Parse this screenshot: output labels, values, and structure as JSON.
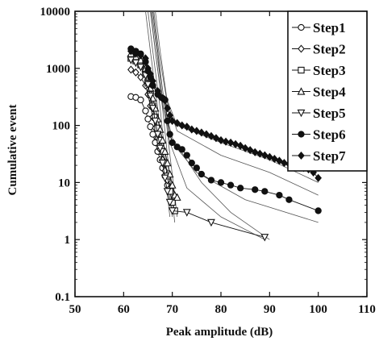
{
  "chart_data": {
    "type": "scatter",
    "xlabel": "Peak amplitude (dB)",
    "ylabel": "Cumulative event",
    "xlim": [
      50,
      110
    ],
    "ylim": [
      0.1,
      10000
    ],
    "yscale": "log",
    "grid": false,
    "legend_position": "top-right",
    "x_ticks": [
      "50",
      "60",
      "70",
      "80",
      "90",
      "100",
      "110"
    ],
    "y_ticks": [
      "0.1",
      "1",
      "10",
      "100",
      "1000",
      "10000"
    ],
    "series": [
      {
        "name": "Step1",
        "marker": "circle-open",
        "points": [
          [
            61.5,
            320
          ],
          [
            62.5,
            310
          ],
          [
            63.5,
            280
          ],
          [
            64.5,
            180
          ],
          [
            65,
            130
          ],
          [
            65.5,
            95
          ],
          [
            66,
            70
          ],
          [
            66.5,
            50
          ],
          [
            67,
            35
          ],
          [
            67.5,
            25
          ],
          [
            68,
            18
          ],
          [
            68.5,
            13
          ],
          [
            69,
            9
          ]
        ]
      },
      {
        "name": "Step2",
        "marker": "diamond-open",
        "points": [
          [
            61.5,
            950
          ],
          [
            62.5,
            850
          ],
          [
            63.5,
            700
          ],
          [
            64.5,
            500
          ],
          [
            65,
            350
          ],
          [
            65.5,
            220
          ],
          [
            66,
            140
          ],
          [
            66.5,
            90
          ],
          [
            67,
            60
          ],
          [
            67.5,
            38
          ],
          [
            68,
            25
          ],
          [
            68.5,
            16
          ],
          [
            69,
            11
          ],
          [
            69.5,
            8
          ]
        ]
      },
      {
        "name": "Step3",
        "marker": "square-open",
        "points": [
          [
            61.5,
            1500
          ],
          [
            62.5,
            1350
          ],
          [
            63.5,
            1150
          ],
          [
            64.5,
            800
          ],
          [
            65,
            550
          ],
          [
            65.5,
            350
          ],
          [
            66,
            220
          ],
          [
            66.5,
            140
          ],
          [
            67,
            90
          ],
          [
            67.5,
            55
          ],
          [
            68,
            35
          ],
          [
            68.5,
            22
          ],
          [
            69,
            13
          ],
          [
            69.5,
            7
          ],
          [
            70,
            4.5
          ],
          [
            70.5,
            3.2
          ]
        ]
      },
      {
        "name": "Step4",
        "marker": "triangle-up-open",
        "points": [
          [
            61.5,
            1800
          ],
          [
            62.5,
            1600
          ],
          [
            63.5,
            1400
          ],
          [
            64.5,
            1000
          ],
          [
            65,
            700
          ],
          [
            65.5,
            450
          ],
          [
            66,
            300
          ],
          [
            66.5,
            200
          ],
          [
            67,
            130
          ],
          [
            67.5,
            85
          ],
          [
            68,
            55
          ],
          [
            68.5,
            35
          ],
          [
            69,
            22
          ],
          [
            69.5,
            14
          ],
          [
            70,
            9
          ],
          [
            70.5,
            6
          ],
          [
            71,
            5.5
          ]
        ]
      },
      {
        "name": "Step5",
        "marker": "triangle-down-open",
        "points": [
          [
            61.5,
            1400
          ],
          [
            62.5,
            1250
          ],
          [
            63.5,
            1050
          ],
          [
            64.5,
            750
          ],
          [
            65,
            520
          ],
          [
            65.5,
            330
          ],
          [
            66,
            200
          ],
          [
            66.5,
            120
          ],
          [
            67,
            70
          ],
          [
            67.5,
            40
          ],
          [
            68,
            22
          ],
          [
            68.5,
            12
          ],
          [
            69,
            7
          ],
          [
            69.5,
            4.5
          ],
          [
            70,
            3.2
          ],
          [
            73,
            3
          ],
          [
            78,
            2
          ],
          [
            89,
            1.1
          ]
        ]
      },
      {
        "name": "Step6",
        "marker": "circle-filled",
        "points": [
          [
            61.5,
            2200
          ],
          [
            62.5,
            2000
          ],
          [
            63.5,
            1800
          ],
          [
            64.5,
            1300
          ],
          [
            65,
            900
          ],
          [
            65.5,
            700
          ],
          [
            66,
            500
          ],
          [
            67,
            350
          ],
          [
            68,
            300
          ],
          [
            68.5,
            280
          ],
          [
            69,
            120
          ],
          [
            69.5,
            70
          ],
          [
            70,
            50
          ],
          [
            71,
            42
          ],
          [
            72,
            38
          ],
          [
            73,
            30
          ],
          [
            74,
            22
          ],
          [
            75,
            18
          ],
          [
            76,
            14
          ],
          [
            78,
            11
          ],
          [
            80,
            10
          ],
          [
            82,
            9
          ],
          [
            84,
            8
          ],
          [
            87,
            7.5
          ],
          [
            89,
            7
          ],
          [
            92,
            6
          ],
          [
            94,
            5
          ],
          [
            100,
            3.2
          ]
        ]
      },
      {
        "name": "Step7",
        "marker": "diamond-filled",
        "points": [
          [
            61.5,
            2000
          ],
          [
            62.5,
            1800
          ],
          [
            63.5,
            1700
          ],
          [
            64.5,
            1500
          ],
          [
            65,
            1000
          ],
          [
            65.5,
            800
          ],
          [
            66,
            600
          ],
          [
            67,
            400
          ],
          [
            67.5,
            320
          ],
          [
            68,
            300
          ],
          [
            68.5,
            280
          ],
          [
            69,
            200
          ],
          [
            69.5,
            150
          ],
          [
            70,
            120
          ],
          [
            71,
            110
          ],
          [
            72,
            100
          ],
          [
            73,
            95
          ],
          [
            74,
            85
          ],
          [
            75,
            80
          ],
          [
            76,
            75
          ],
          [
            77,
            70
          ],
          [
            78,
            65
          ],
          [
            79,
            60
          ],
          [
            80,
            55
          ],
          [
            81,
            52
          ],
          [
            82,
            50
          ],
          [
            83,
            47
          ],
          [
            84,
            44
          ],
          [
            85,
            40
          ],
          [
            86,
            37
          ],
          [
            87,
            34
          ],
          [
            88,
            32
          ],
          [
            89,
            30
          ],
          [
            90,
            28
          ],
          [
            91,
            26
          ],
          [
            92,
            24
          ],
          [
            93,
            22
          ],
          [
            94,
            21
          ],
          [
            95,
            20
          ],
          [
            96,
            19
          ],
          [
            97,
            18
          ],
          [
            98,
            17
          ],
          [
            99,
            15
          ],
          [
            100,
            12
          ]
        ]
      }
    ],
    "fit_curves": [
      [
        [
          65.5,
          10000
        ],
        [
          66.5,
          2000
        ],
        [
          68,
          200
        ],
        [
          69,
          30
        ],
        [
          70,
          5
        ],
        [
          70.5,
          2
        ]
      ],
      [
        [
          65,
          10000
        ],
        [
          66,
          2000
        ],
        [
          67.5,
          200
        ],
        [
          68.5,
          30
        ],
        [
          69.5,
          6
        ],
        [
          70,
          2.5
        ]
      ],
      [
        [
          66,
          10000
        ],
        [
          67,
          2000
        ],
        [
          68.5,
          200
        ],
        [
          69.5,
          30
        ],
        [
          70.5,
          6
        ],
        [
          71,
          2.5
        ]
      ],
      [
        [
          64.5,
          10000
        ],
        [
          65.5,
          2000
        ],
        [
          67,
          200
        ],
        [
          68,
          30
        ],
        [
          69,
          6
        ],
        [
          69.5,
          2.5
        ]
      ],
      [
        [
          65.6,
          10000
        ],
        [
          66.5,
          2000
        ],
        [
          68,
          220
        ],
        [
          70,
          50
        ],
        [
          75,
          15
        ],
        [
          85,
          5
        ],
        [
          100,
          2
        ]
      ],
      [
        [
          66.5,
          10000
        ],
        [
          67.5,
          2000
        ],
        [
          69,
          250
        ],
        [
          71,
          80
        ],
        [
          80,
          30
        ],
        [
          90,
          15
        ],
        [
          100,
          6
        ]
      ],
      [
        [
          65.8,
          10000
        ],
        [
          66.8,
          2000
        ],
        [
          68,
          300
        ],
        [
          70,
          60
        ],
        [
          76,
          10
        ],
        [
          82,
          3
        ],
        [
          90,
          1
        ]
      ],
      [
        [
          66.2,
          10000
        ],
        [
          67.2,
          2000
        ],
        [
          68.8,
          300
        ],
        [
          71,
          100
        ],
        [
          80,
          50
        ],
        [
          90,
          25
        ],
        [
          100,
          10
        ]
      ],
      [
        [
          66,
          10000
        ],
        [
          67,
          2000
        ],
        [
          68,
          250
        ],
        [
          69.5,
          50
        ],
        [
          73,
          8
        ],
        [
          80,
          2.5
        ],
        [
          89,
          1
        ]
      ]
    ]
  }
}
